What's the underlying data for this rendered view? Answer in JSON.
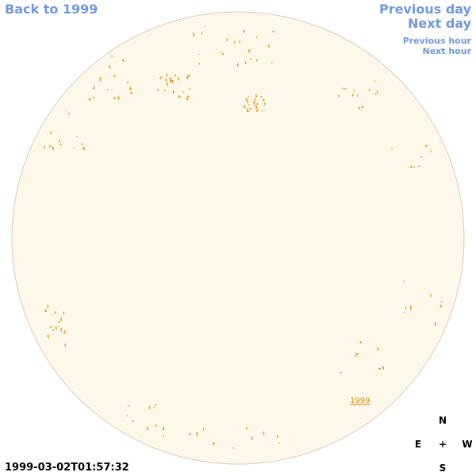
{
  "navigation": {
    "back": "Back to 1999",
    "previous_day": "Previous day",
    "next_day": "Next day",
    "previous_hour": "Previous hour",
    "next_hour": "Next hour"
  },
  "timestamp": "1999-03-02T01:57:32",
  "compass": {
    "north": "N",
    "east": "E",
    "center": "+",
    "west": "W",
    "south": "S"
  },
  "regions": [
    {
      "label": "1999"
    }
  ]
}
